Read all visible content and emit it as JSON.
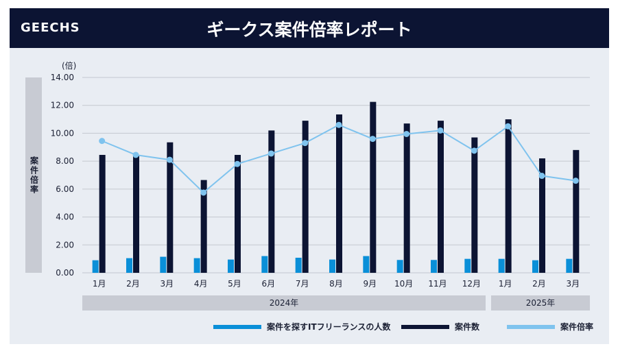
{
  "header": {
    "brand": "GEECHS",
    "title": "ギークス案件倍率レポート"
  },
  "colors": {
    "freelancers": "#0a8fd8",
    "jobs": "#0c1433",
    "ratio": "#7fc3ee",
    "header_bg": "#0c1433"
  },
  "chart_data": {
    "type": "bar",
    "unit_label": "(倍)",
    "ylabel": "案件倍率",
    "ylim": [
      0,
      14
    ],
    "yticks": [
      "0.00",
      "2.00",
      "4.00",
      "6.00",
      "8.00",
      "10.00",
      "12.00",
      "14.00"
    ],
    "categories": [
      "1月",
      "2月",
      "3月",
      "4月",
      "5月",
      "6月",
      "7月",
      "8月",
      "9月",
      "10月",
      "11月",
      "12月",
      "1月",
      "2月",
      "3月"
    ],
    "year_groups": [
      {
        "label": "2024年",
        "count": 12
      },
      {
        "label": "2025年",
        "count": 3
      }
    ],
    "series": [
      {
        "name": "案件を探すITフリーランスの人数",
        "kind": "bar",
        "values": [
          0.9,
          1.05,
          1.15,
          1.05,
          0.95,
          1.2,
          1.08,
          0.95,
          1.2,
          0.92,
          0.92,
          1.0,
          1.0,
          0.9,
          1.0
        ]
      },
      {
        "name": "案件数",
        "kind": "bar",
        "values": [
          8.45,
          8.45,
          9.35,
          6.65,
          8.45,
          10.2,
          10.9,
          11.35,
          12.25,
          10.7,
          10.9,
          9.7,
          11.0,
          8.2,
          8.8
        ]
      },
      {
        "name": "案件倍率",
        "kind": "line",
        "values": [
          9.45,
          8.45,
          8.1,
          5.75,
          7.8,
          8.55,
          9.3,
          10.6,
          9.6,
          9.95,
          10.2,
          8.75,
          10.5,
          6.95,
          6.6
        ]
      }
    ]
  }
}
